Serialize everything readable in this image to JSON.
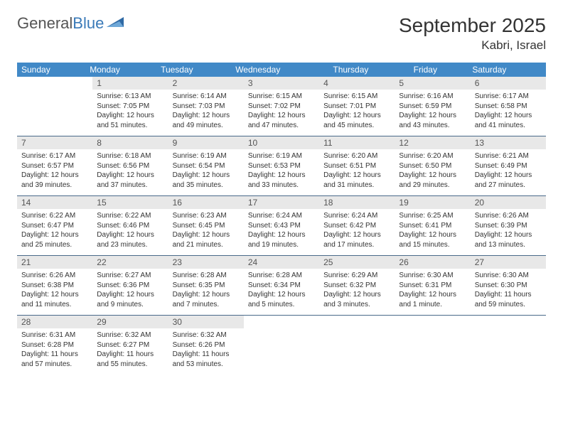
{
  "logo": {
    "text1": "General",
    "text2": "Blue"
  },
  "title": "September 2025",
  "location": "Kabri, Israel",
  "header_bg": "#4189c7",
  "daynum_bg": "#e8e8e8",
  "border_color": "#4a6a8a",
  "dow": [
    "Sunday",
    "Monday",
    "Tuesday",
    "Wednesday",
    "Thursday",
    "Friday",
    "Saturday"
  ],
  "weeks": [
    [
      {
        "n": "",
        "sunrise": "",
        "sunset": "",
        "daylight": ""
      },
      {
        "n": "1",
        "sunrise": "Sunrise: 6:13 AM",
        "sunset": "Sunset: 7:05 PM",
        "daylight": "Daylight: 12 hours and 51 minutes."
      },
      {
        "n": "2",
        "sunrise": "Sunrise: 6:14 AM",
        "sunset": "Sunset: 7:03 PM",
        "daylight": "Daylight: 12 hours and 49 minutes."
      },
      {
        "n": "3",
        "sunrise": "Sunrise: 6:15 AM",
        "sunset": "Sunset: 7:02 PM",
        "daylight": "Daylight: 12 hours and 47 minutes."
      },
      {
        "n": "4",
        "sunrise": "Sunrise: 6:15 AM",
        "sunset": "Sunset: 7:01 PM",
        "daylight": "Daylight: 12 hours and 45 minutes."
      },
      {
        "n": "5",
        "sunrise": "Sunrise: 6:16 AM",
        "sunset": "Sunset: 6:59 PM",
        "daylight": "Daylight: 12 hours and 43 minutes."
      },
      {
        "n": "6",
        "sunrise": "Sunrise: 6:17 AM",
        "sunset": "Sunset: 6:58 PM",
        "daylight": "Daylight: 12 hours and 41 minutes."
      }
    ],
    [
      {
        "n": "7",
        "sunrise": "Sunrise: 6:17 AM",
        "sunset": "Sunset: 6:57 PM",
        "daylight": "Daylight: 12 hours and 39 minutes."
      },
      {
        "n": "8",
        "sunrise": "Sunrise: 6:18 AM",
        "sunset": "Sunset: 6:56 PM",
        "daylight": "Daylight: 12 hours and 37 minutes."
      },
      {
        "n": "9",
        "sunrise": "Sunrise: 6:19 AM",
        "sunset": "Sunset: 6:54 PM",
        "daylight": "Daylight: 12 hours and 35 minutes."
      },
      {
        "n": "10",
        "sunrise": "Sunrise: 6:19 AM",
        "sunset": "Sunset: 6:53 PM",
        "daylight": "Daylight: 12 hours and 33 minutes."
      },
      {
        "n": "11",
        "sunrise": "Sunrise: 6:20 AM",
        "sunset": "Sunset: 6:51 PM",
        "daylight": "Daylight: 12 hours and 31 minutes."
      },
      {
        "n": "12",
        "sunrise": "Sunrise: 6:20 AM",
        "sunset": "Sunset: 6:50 PM",
        "daylight": "Daylight: 12 hours and 29 minutes."
      },
      {
        "n": "13",
        "sunrise": "Sunrise: 6:21 AM",
        "sunset": "Sunset: 6:49 PM",
        "daylight": "Daylight: 12 hours and 27 minutes."
      }
    ],
    [
      {
        "n": "14",
        "sunrise": "Sunrise: 6:22 AM",
        "sunset": "Sunset: 6:47 PM",
        "daylight": "Daylight: 12 hours and 25 minutes."
      },
      {
        "n": "15",
        "sunrise": "Sunrise: 6:22 AM",
        "sunset": "Sunset: 6:46 PM",
        "daylight": "Daylight: 12 hours and 23 minutes."
      },
      {
        "n": "16",
        "sunrise": "Sunrise: 6:23 AM",
        "sunset": "Sunset: 6:45 PM",
        "daylight": "Daylight: 12 hours and 21 minutes."
      },
      {
        "n": "17",
        "sunrise": "Sunrise: 6:24 AM",
        "sunset": "Sunset: 6:43 PM",
        "daylight": "Daylight: 12 hours and 19 minutes."
      },
      {
        "n": "18",
        "sunrise": "Sunrise: 6:24 AM",
        "sunset": "Sunset: 6:42 PM",
        "daylight": "Daylight: 12 hours and 17 minutes."
      },
      {
        "n": "19",
        "sunrise": "Sunrise: 6:25 AM",
        "sunset": "Sunset: 6:41 PM",
        "daylight": "Daylight: 12 hours and 15 minutes."
      },
      {
        "n": "20",
        "sunrise": "Sunrise: 6:26 AM",
        "sunset": "Sunset: 6:39 PM",
        "daylight": "Daylight: 12 hours and 13 minutes."
      }
    ],
    [
      {
        "n": "21",
        "sunrise": "Sunrise: 6:26 AM",
        "sunset": "Sunset: 6:38 PM",
        "daylight": "Daylight: 12 hours and 11 minutes."
      },
      {
        "n": "22",
        "sunrise": "Sunrise: 6:27 AM",
        "sunset": "Sunset: 6:36 PM",
        "daylight": "Daylight: 12 hours and 9 minutes."
      },
      {
        "n": "23",
        "sunrise": "Sunrise: 6:28 AM",
        "sunset": "Sunset: 6:35 PM",
        "daylight": "Daylight: 12 hours and 7 minutes."
      },
      {
        "n": "24",
        "sunrise": "Sunrise: 6:28 AM",
        "sunset": "Sunset: 6:34 PM",
        "daylight": "Daylight: 12 hours and 5 minutes."
      },
      {
        "n": "25",
        "sunrise": "Sunrise: 6:29 AM",
        "sunset": "Sunset: 6:32 PM",
        "daylight": "Daylight: 12 hours and 3 minutes."
      },
      {
        "n": "26",
        "sunrise": "Sunrise: 6:30 AM",
        "sunset": "Sunset: 6:31 PM",
        "daylight": "Daylight: 12 hours and 1 minute."
      },
      {
        "n": "27",
        "sunrise": "Sunrise: 6:30 AM",
        "sunset": "Sunset: 6:30 PM",
        "daylight": "Daylight: 11 hours and 59 minutes."
      }
    ],
    [
      {
        "n": "28",
        "sunrise": "Sunrise: 6:31 AM",
        "sunset": "Sunset: 6:28 PM",
        "daylight": "Daylight: 11 hours and 57 minutes."
      },
      {
        "n": "29",
        "sunrise": "Sunrise: 6:32 AM",
        "sunset": "Sunset: 6:27 PM",
        "daylight": "Daylight: 11 hours and 55 minutes."
      },
      {
        "n": "30",
        "sunrise": "Sunrise: 6:32 AM",
        "sunset": "Sunset: 6:26 PM",
        "daylight": "Daylight: 11 hours and 53 minutes."
      },
      {
        "n": "",
        "sunrise": "",
        "sunset": "",
        "daylight": ""
      },
      {
        "n": "",
        "sunrise": "",
        "sunset": "",
        "daylight": ""
      },
      {
        "n": "",
        "sunrise": "",
        "sunset": "",
        "daylight": ""
      },
      {
        "n": "",
        "sunrise": "",
        "sunset": "",
        "daylight": ""
      }
    ]
  ]
}
